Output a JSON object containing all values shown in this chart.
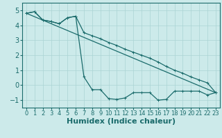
{
  "xlabel": "Humidex (Indice chaleur)",
  "bg_color": "#cceaea",
  "line_color": "#1a6b6b",
  "grid_color": "#aad4d4",
  "xlim": [
    -0.5,
    23.5
  ],
  "ylim": [
    -1.5,
    5.5
  ],
  "xticks": [
    0,
    1,
    2,
    3,
    4,
    5,
    6,
    7,
    8,
    9,
    10,
    11,
    12,
    13,
    14,
    15,
    16,
    17,
    18,
    19,
    20,
    21,
    22,
    23
  ],
  "yticks": [
    -1,
    0,
    1,
    2,
    3,
    4,
    5
  ],
  "line1_x": [
    0,
    1,
    2,
    3,
    4,
    5,
    6,
    7,
    8,
    9,
    10,
    11,
    12,
    13,
    14,
    15,
    16,
    17,
    18,
    19,
    20,
    21,
    22,
    23
  ],
  "line1_y": [
    4.8,
    4.9,
    4.35,
    4.25,
    4.1,
    4.5,
    4.6,
    3.5,
    3.3,
    3.1,
    2.85,
    2.65,
    2.4,
    2.2,
    2.0,
    1.8,
    1.55,
    1.25,
    1.0,
    0.8,
    0.55,
    0.35,
    0.15,
    -0.5
  ],
  "line2_x": [
    0,
    1,
    2,
    3,
    4,
    5,
    6,
    7,
    8,
    9,
    10,
    11,
    12,
    13,
    14,
    15,
    16,
    17,
    18,
    19,
    20,
    21,
    22,
    23
  ],
  "line2_y": [
    4.8,
    4.9,
    4.35,
    4.25,
    4.1,
    4.5,
    4.6,
    0.55,
    -0.3,
    -0.3,
    -0.9,
    -0.95,
    -0.85,
    -0.5,
    -0.5,
    -0.5,
    -1.0,
    -0.95,
    -0.4,
    -0.4,
    -0.4,
    -0.4,
    -0.65,
    -0.5
  ],
  "line3_x": [
    0,
    23
  ],
  "line3_y": [
    4.8,
    -0.5
  ],
  "marker_size": 2.5,
  "label_fontsize": 7,
  "tick_fontsize": 6,
  "xlabel_fontsize": 8
}
